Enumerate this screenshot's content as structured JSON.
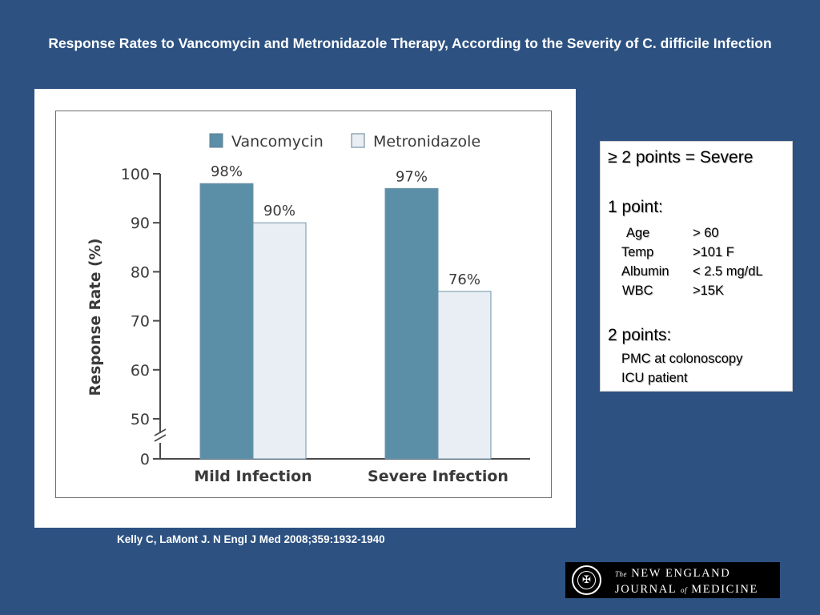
{
  "slide": {
    "title": "Response Rates to Vancomycin and Metronidazole Therapy, According to the Severity of C. difficile Infection",
    "citation": "Kelly C, LaMont J. N Engl J Med 2008;359:1932-1940"
  },
  "chart_data": {
    "type": "bar",
    "categories": [
      "Mild Infection",
      "Severe Infection"
    ],
    "series": [
      {
        "name": "Vancomycin",
        "values": [
          98,
          97
        ],
        "labels": [
          "98%",
          "97%"
        ],
        "color": "#5b8fa8"
      },
      {
        "name": "Metronidazole",
        "values": [
          90,
          76
        ],
        "labels": [
          "90%",
          "76%"
        ],
        "color": "#e8eef3"
      }
    ],
    "ylabel": "Response Rate (%)",
    "yticks": [
      0,
      50,
      60,
      70,
      80,
      90,
      100
    ],
    "ylim": [
      50,
      100
    ],
    "axis_break": true,
    "legend_position": "top",
    "grid": false
  },
  "criteria": {
    "severe_heading": "≥ 2 points = Severe",
    "one_point_heading": "1 point:",
    "one_point_items": [
      {
        "name": "Age",
        "value": "> 60"
      },
      {
        "name": "Temp",
        "value": ">101 F"
      },
      {
        "name": "Albumin",
        "value": "< 2.5 mg/dL"
      },
      {
        "name": "WBC",
        "value": ">15K"
      }
    ],
    "two_points_heading": "2 points:",
    "two_points_items": [
      "PMC at colonoscopy",
      "ICU patient"
    ]
  },
  "logo": {
    "line1_prefix": "The",
    "line1": "NEW ENGLAND",
    "line2_a": "JOURNAL",
    "line2_of": "of",
    "line2_b": "MEDICINE"
  }
}
